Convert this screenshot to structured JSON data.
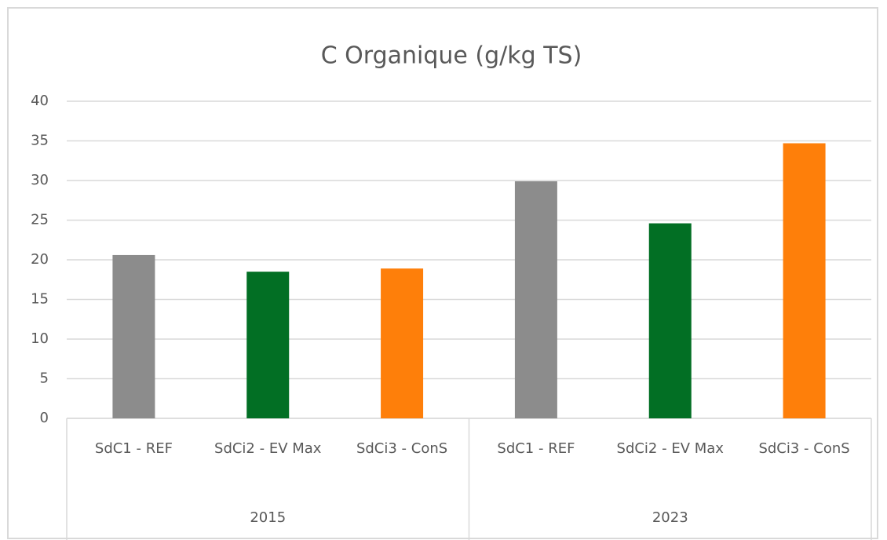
{
  "chart_data": {
    "type": "bar",
    "title": "C Organique (g/kg TS)",
    "categories": [
      "SdC1 - REF",
      "SdCi2 - EV Max",
      "SdCi3 - ConS",
      "SdC1 - REF",
      "SdCi2 - EV Max",
      "SdCi3 - ConS"
    ],
    "group_labels": [
      "2015",
      "2023"
    ],
    "values": [
      20.6,
      18.5,
      18.9,
      29.9,
      24.6,
      34.7
    ],
    "colors": [
      "#8c8c8c",
      "#026f24",
      "#fe7f0a",
      "#8c8c8c",
      "#026f24",
      "#fe7f0a"
    ],
    "ylim": [
      0,
      40
    ],
    "yticks": [
      0,
      5,
      10,
      15,
      20,
      25,
      30,
      35,
      40
    ],
    "grid": true
  }
}
